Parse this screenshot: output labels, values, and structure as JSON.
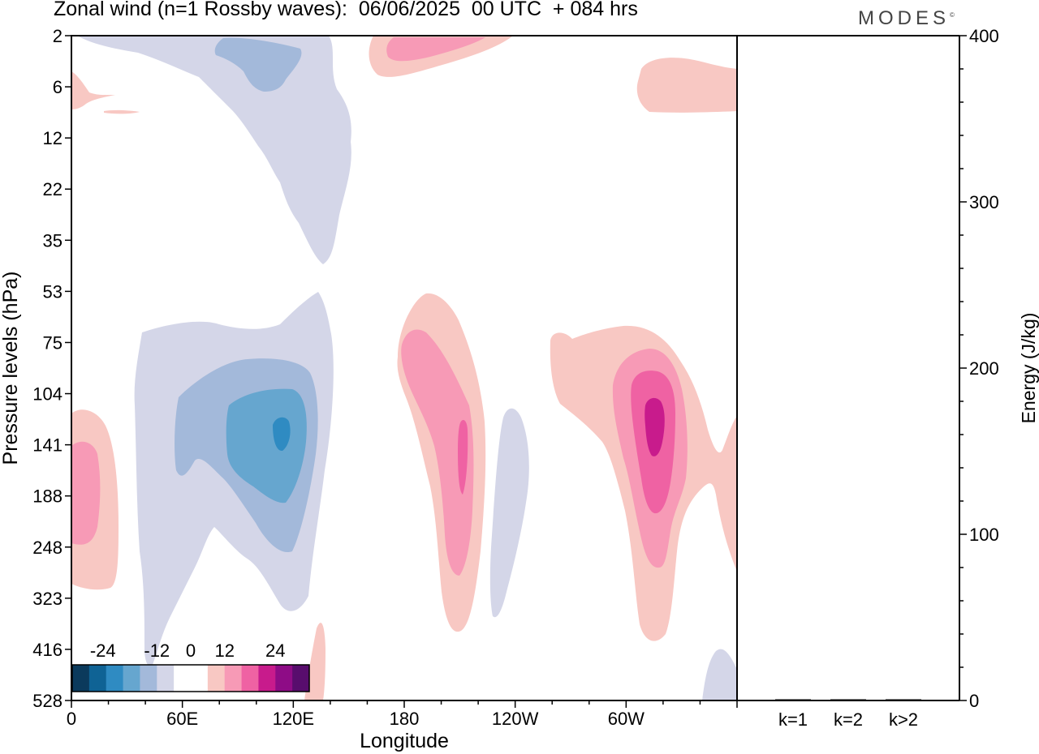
{
  "title": "Zonal wind (n=1 Rossby waves):  06/06/2025  00 UTC  + 084 hrs",
  "brand": "MODES",
  "brand_mark": "©",
  "chart_data": [
    {
      "type": "heatmap",
      "title": "Zonal wind (n=1 Rossby waves):  06/06/2025  00 UTC  + 084 hrs",
      "xlabel": "Longitude",
      "ylabel": "Pressure levels (hPa)",
      "x_ticks": [
        "0",
        "60E",
        "120E",
        "180",
        "120W",
        "60W"
      ],
      "x_tick_lon": [
        0,
        60,
        120,
        180,
        240,
        300
      ],
      "xlim": [
        0,
        360
      ],
      "y_ticks": [
        "2",
        "6",
        "12",
        "22",
        "35",
        "53",
        "75",
        "104",
        "141",
        "188",
        "248",
        "323",
        "416",
        "528"
      ],
      "y_scale": "pressure levels (equally spaced, top = 2 hPa)",
      "colorbar": {
        "labels": [
          "-24",
          "-12",
          "0",
          "12",
          "24"
        ],
        "colors": [
          "#0b3a5c",
          "#0f6395",
          "#2f8bc2",
          "#66a6cf",
          "#a3b9da",
          "#d4d6e8",
          "#ffffff",
          "#ffffff",
          "#f8c8c3",
          "#f79ab6",
          "#ef62a3",
          "#c81b8c",
          "#8e0c86",
          "#580d6d"
        ]
      },
      "fields": [
        {
          "value_range": "-12..-8",
          "color": "#a3b9da",
          "centers": [
            [
              90,
              104
            ],
            [
              118,
              3
            ]
          ]
        },
        {
          "value_range": "-8..-4",
          "color": "#66a6cf",
          "centers": [
            [
              113,
              141
            ]
          ]
        },
        {
          "value_range": "<-16",
          "color": "#2f8bc2",
          "centers": [
            [
              114,
              141
            ]
          ]
        },
        {
          "value_range": "4..8",
          "color": "#f79ab6",
          "centers": [
            [
              195,
              141
            ],
            [
              310,
              141
            ],
            [
              200,
              2
            ]
          ]
        },
        {
          "value_range": "8..12",
          "color": "#ef62a3",
          "centers": [
            [
              200,
              160
            ],
            [
              315,
              130
            ]
          ]
        },
        {
          "value_range": ">16",
          "color": "#c81b8c",
          "centers": [
            [
              315,
              130
            ]
          ]
        }
      ]
    },
    {
      "type": "bar",
      "ylabel": "Energy (J/kg)",
      "categories": [
        "k=1",
        "k=2",
        "k>2"
      ],
      "values": [
        0.3,
        0.3,
        0.3
      ],
      "ylim": [
        0,
        400
      ],
      "y_ticks": [
        "0",
        "100",
        "200",
        "300",
        "400"
      ]
    }
  ]
}
